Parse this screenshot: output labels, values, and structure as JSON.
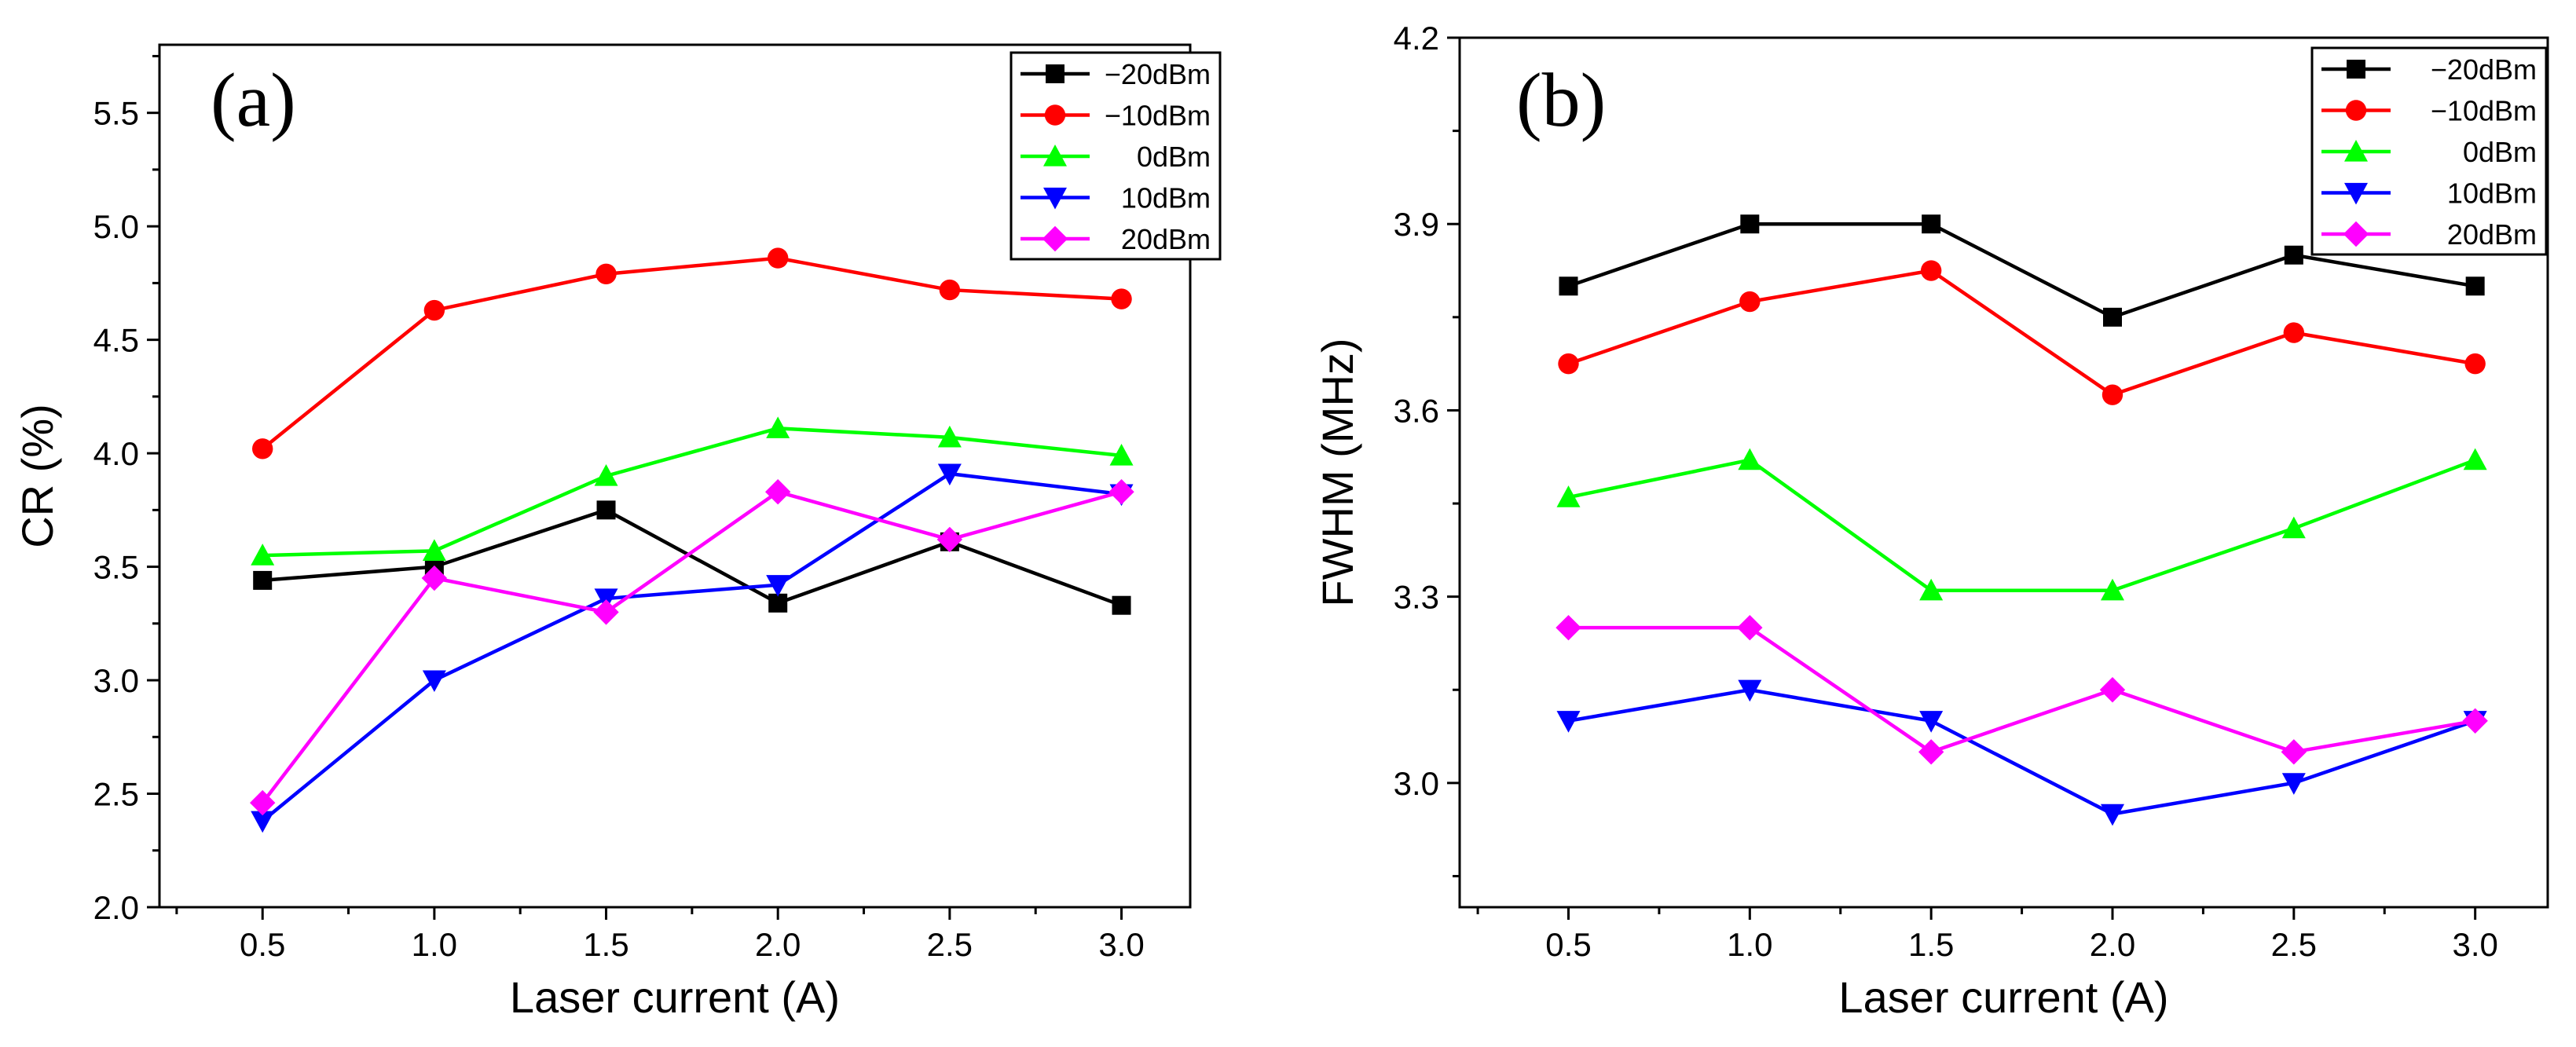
{
  "figure": {
    "panels": [
      "(a)",
      "(b)"
    ]
  },
  "chart_data": [
    {
      "type": "line",
      "panel_label": "(a)",
      "xlabel": "Laser current (A)",
      "ylabel": "CR (%)",
      "x": [
        0.5,
        1.0,
        1.5,
        2.0,
        2.5,
        3.0
      ],
      "xlim": [
        0.2,
        3.2
      ],
      "ylim": [
        2.0,
        5.8
      ],
      "xticks": [
        0.5,
        1.0,
        1.5,
        2.0,
        2.5,
        3.0
      ],
      "xtick_labels": [
        "0.5",
        "1.0",
        "1.5",
        "2.0",
        "2.5",
        "3.0"
      ],
      "yticks": [
        2.0,
        2.5,
        3.0,
        3.5,
        4.0,
        4.5,
        5.0,
        5.5
      ],
      "ytick_labels": [
        "2.0",
        "2.5",
        "3.0",
        "3.5",
        "4.0",
        "4.5",
        "5.0",
        "5.5"
      ],
      "legend_position": "top-right",
      "series": [
        {
          "name": "−20dBm",
          "color": "#000000",
          "marker": "square",
          "values": [
            3.44,
            3.5,
            3.75,
            3.34,
            3.61,
            3.33
          ]
        },
        {
          "name": "−10dBm",
          "color": "#ff0000",
          "marker": "circle",
          "values": [
            4.02,
            4.63,
            4.79,
            4.86,
            4.72,
            4.68
          ]
        },
        {
          "name": "0dBm",
          "color": "#00ff00",
          "marker": "triangle-up",
          "values": [
            3.55,
            3.57,
            3.9,
            4.11,
            4.07,
            3.99
          ]
        },
        {
          "name": "10dBm",
          "color": "#0000ff",
          "marker": "triangle-down",
          "values": [
            2.38,
            3.0,
            3.36,
            3.42,
            3.91,
            3.82
          ]
        },
        {
          "name": "20dBm",
          "color": "#ff00ff",
          "marker": "diamond",
          "values": [
            2.46,
            3.45,
            3.3,
            3.83,
            3.62,
            3.83
          ]
        }
      ]
    },
    {
      "type": "line",
      "panel_label": "(b)",
      "xlabel": "Laser current (A)",
      "ylabel": "FWHM (MHz)",
      "x": [
        0.5,
        1.0,
        1.5,
        2.0,
        2.5,
        3.0
      ],
      "xlim": [
        0.2,
        3.2
      ],
      "ylim": [
        2.8,
        4.2
      ],
      "xticks": [
        0.5,
        1.0,
        1.5,
        2.0,
        2.5,
        3.0
      ],
      "xtick_labels": [
        "0.5",
        "1.0",
        "1.5",
        "2.0",
        "2.5",
        "3.0"
      ],
      "yticks": [
        3.0,
        3.3,
        3.6,
        3.9,
        4.2
      ],
      "ytick_labels": [
        "3.0",
        "3.3",
        "3.6",
        "3.9",
        "4.2"
      ],
      "legend_position": "top-right",
      "series": [
        {
          "name": "−20dBm",
          "color": "#000000",
          "marker": "square",
          "values": [
            3.8,
            3.9,
            3.9,
            3.75,
            3.85,
            3.8
          ]
        },
        {
          "name": "−10dBm",
          "color": "#ff0000",
          "marker": "circle",
          "values": [
            3.675,
            3.775,
            3.825,
            3.625,
            3.725,
            3.675
          ]
        },
        {
          "name": "0dBm",
          "color": "#00ff00",
          "marker": "triangle-up",
          "values": [
            3.46,
            3.52,
            3.31,
            3.31,
            3.41,
            3.52
          ]
        },
        {
          "name": "10dBm",
          "color": "#0000ff",
          "marker": "triangle-down",
          "values": [
            3.1,
            3.15,
            3.1,
            2.95,
            3.0,
            3.1
          ]
        },
        {
          "name": "20dBm",
          "color": "#ff00ff",
          "marker": "diamond",
          "values": [
            3.25,
            3.25,
            3.05,
            3.15,
            3.05,
            3.1
          ]
        }
      ]
    }
  ]
}
